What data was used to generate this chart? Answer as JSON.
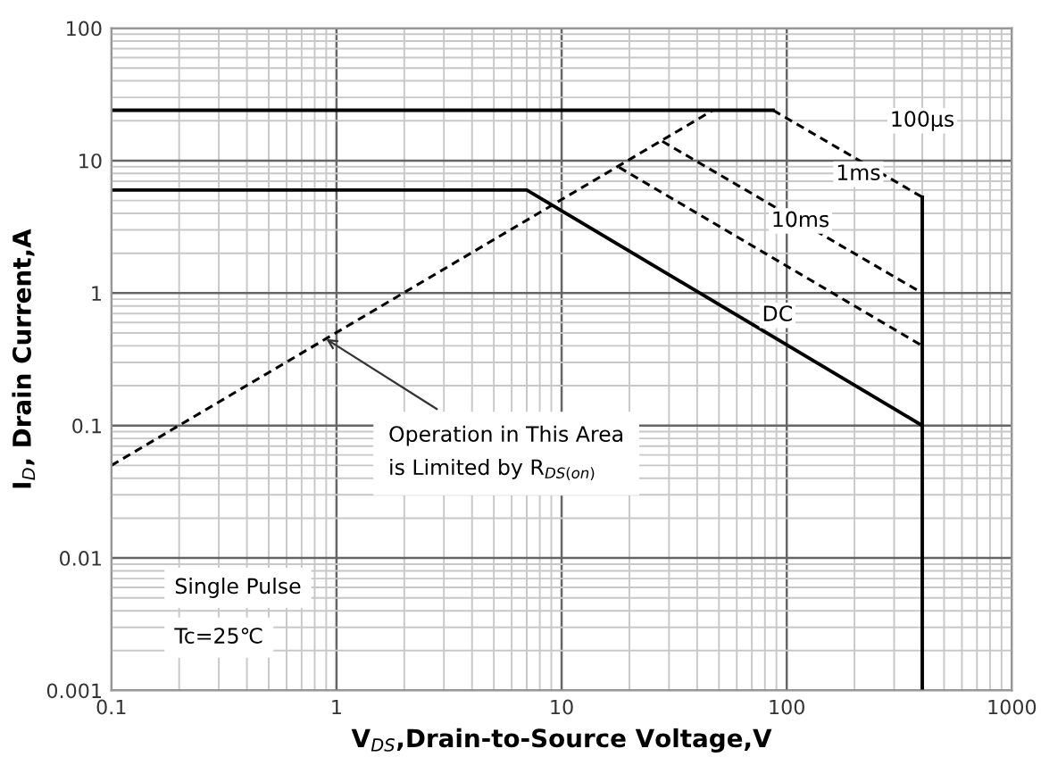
{
  "chart_data": {
    "type": "line",
    "xlabel": "V$_{DS}$,Drain-to-Source Voltage,V",
    "ylabel": "I$_{D}$, Drain Current,A",
    "log": "xy",
    "xlim": [
      0.1,
      1000
    ],
    "xticks": [
      0.1,
      1,
      10,
      100,
      1000
    ],
    "ylim": [
      0.001,
      100
    ],
    "yticks": [
      0.001,
      0.01,
      0.1,
      1,
      10,
      100
    ],
    "grid": true,
    "series": [
      {
        "color": "#000000",
        "line_style": "solid",
        "x": [
          0.1,
          87
        ],
        "values": [
          24,
          24
        ]
      },
      {
        "color": "#000000",
        "line_style": "dashed",
        "x": [
          87,
          400
        ],
        "values": [
          24,
          5.3
        ]
      },
      {
        "color": "#000000",
        "line_style": "solid",
        "x": [
          400,
          400
        ],
        "values": [
          5.3,
          0.1
        ]
      },
      {
        "color": "#000000",
        "line_style": "dashed",
        "x": [
          28,
          400
        ],
        "values": [
          14,
          1
        ]
      },
      {
        "color": "#000000",
        "line_style": "dashed",
        "x": [
          18,
          400
        ],
        "values": [
          8.9,
          0.4
        ]
      },
      {
        "color": "#000000",
        "line_style": "solid",
        "x": [
          0.1,
          7,
          400,
          400
        ],
        "values": [
          6,
          6,
          0.1,
          0.001
        ]
      },
      {
        "color": "#000000",
        "line_style": "dashed",
        "x": [
          0.1,
          47
        ],
        "values": [
          0.05,
          24
        ]
      }
    ],
    "annotations": [
      {
        "text": "100µs",
        "x": 400,
        "y": 20
      },
      {
        "text": "1ms",
        "x": 208,
        "y": 7.9
      },
      {
        "text": "10ms",
        "x": 115,
        "y": 3.5
      },
      {
        "text": "DC",
        "x": 91,
        "y": 0.68
      },
      {
        "text": "Operation in This Area\nis Limited by R$_{DS(on)}$",
        "x": 0.9,
        "y": 0.45
      },
      "Single Pulse",
      "Tc=25℃"
    ]
  }
}
